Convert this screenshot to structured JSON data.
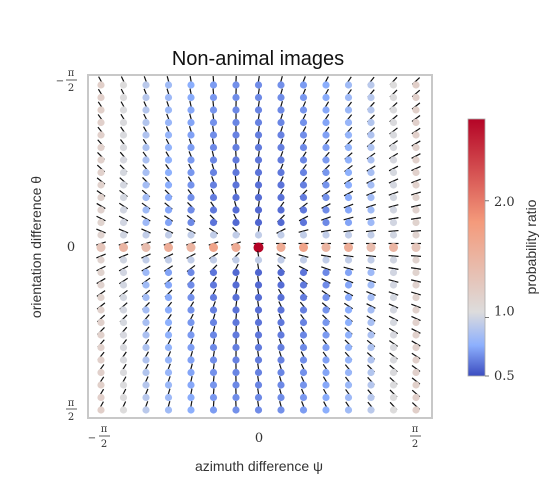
{
  "chart_data": {
    "type": "heatmap",
    "subtype": "orientation-field-dot-grid",
    "title": "Non-animal images",
    "xlabel": "azimuth difference ψ",
    "ylabel": "orientation difference θ",
    "xlim": [
      "-π/2",
      "π/2"
    ],
    "ylim": [
      "-π/2",
      "π/2"
    ],
    "x_ticks": [
      {
        "value": "-π/2",
        "minus": "−",
        "num": "π",
        "den": "2"
      },
      {
        "value": "0",
        "text": "0"
      },
      {
        "value": "π/2",
        "num": "π",
        "den": "2"
      }
    ],
    "y_ticks": [
      {
        "value": "-π/2",
        "minus": "−",
        "num": "π",
        "den": "2"
      },
      {
        "value": "0",
        "text": "0"
      },
      {
        "value": "π/2",
        "num": "π",
        "den": "2"
      }
    ],
    "grid_size": {
      "rows": 27,
      "cols": 15
    },
    "colorbar": {
      "label": "probability ratio",
      "range": [
        0.5,
        2.7
      ],
      "ticks": [
        {
          "value": 0.5,
          "label": "0.5"
        },
        {
          "value": 1.0,
          "label": "1.0"
        },
        {
          "value": 2.0,
          "label": "2.0"
        }
      ],
      "colormap": [
        "#3b4cc0",
        "#8db0fe",
        "#dddcdc",
        "#f49a7b",
        "#b40426"
      ]
    },
    "notes_on_values": {
      "center_row_theta_0": "probability ratio ≈ 1.4–1.7 across ψ, peaking ≈ 2.7 at ψ = 0",
      "inner_columns": "probability ratio ≈ 0.5–0.8 away from θ = 0",
      "outer_columns_near_plus_minus_pi_over_2": "probability ratio ≈ 1.0–1.2"
    }
  }
}
